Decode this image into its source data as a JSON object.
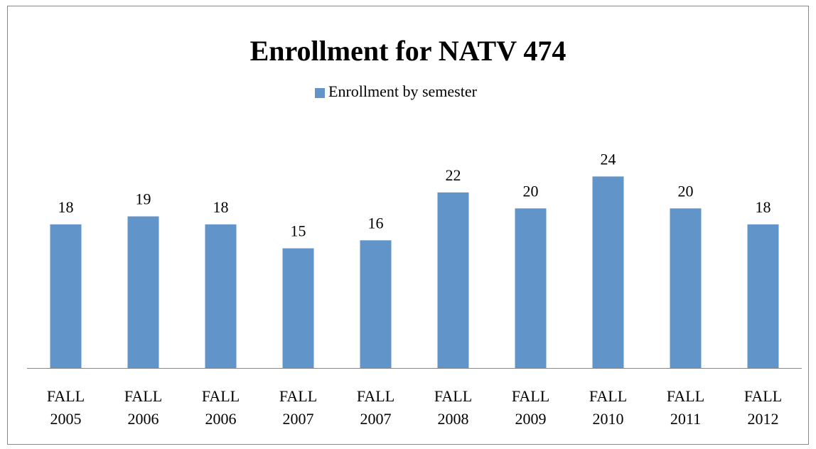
{
  "chart_data": {
    "type": "bar",
    "title": "Enrollment for NATV 474",
    "series": [
      {
        "name": "Enrollment by semester",
        "color": "#6194c9",
        "values": [
          18,
          19,
          18,
          15,
          16,
          22,
          20,
          24,
          20,
          18
        ]
      }
    ],
    "categories": [
      "FALL 2005",
      "FALL 2006",
      "FALL 2006",
      "FALL 2007",
      "FALL 2007",
      "FALL 2008",
      "FALL 2009",
      "FALL 2010",
      "FALL 2011",
      "FALL 2012"
    ],
    "ylim": [
      0,
      30
    ],
    "legend": "top"
  }
}
